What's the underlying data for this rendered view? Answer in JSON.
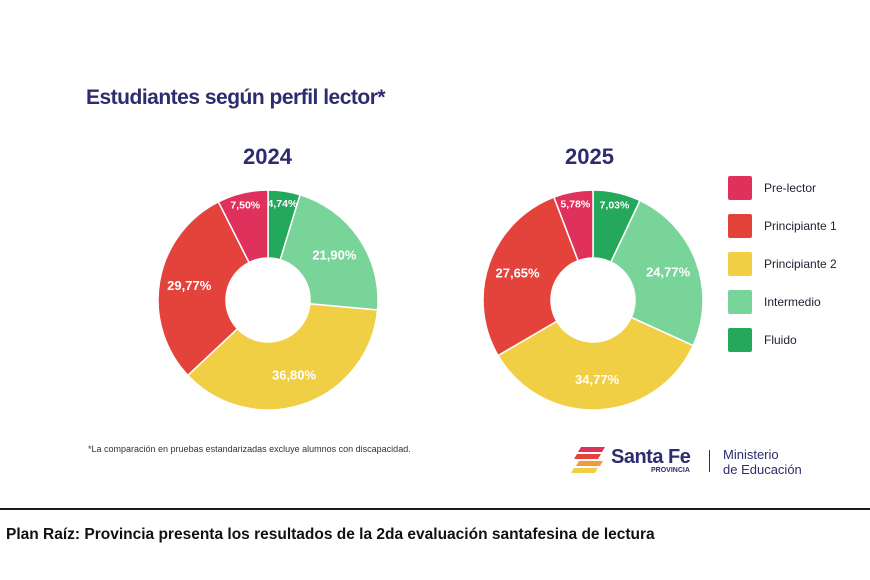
{
  "title": "Estudiantes según perfil lector*",
  "footnote": "*La comparación en pruebas estandarizadas excluye alumnos con discapacidad.",
  "logo": {
    "name": "Santa Fe",
    "sub": "PROVINCIA",
    "ministry_line1": "Ministerio",
    "ministry_line2": "de Educación"
  },
  "caption": "Plan Raíz: Provincia presenta los resultados de la 2da evaluación santafesina de lectura",
  "colors": {
    "title": "#2d2c6e",
    "pre_lector": "#e0305c",
    "principiante_1": "#e4433c",
    "principiante_2": "#f0cf45",
    "intermedio": "#79d49a",
    "fluido": "#24a85c"
  },
  "legend": [
    {
      "label": "Pre-lector",
      "color": "#e0305c"
    },
    {
      "label": "Principiante 1",
      "color": "#e4433c"
    },
    {
      "label": "Principiante 2",
      "color": "#f0cf45"
    },
    {
      "label": "Intermedio",
      "color": "#79d49a"
    },
    {
      "label": "Fluido",
      "color": "#24a85c"
    }
  ],
  "chart_data": [
    {
      "type": "pie",
      "variant": "donut",
      "title": "2024",
      "categories": [
        "Fluido",
        "Intermedio",
        "Principiante 2",
        "Principiante 1",
        "Pre-lector"
      ],
      "values": [
        4.74,
        21.9,
        36.8,
        29.77,
        7.5
      ],
      "labels": [
        "4,74%",
        "21,90%",
        "36,80%",
        "29,77%",
        "7,50%"
      ],
      "colors": [
        "#24a85c",
        "#79d49a",
        "#f0cf45",
        "#e4433c",
        "#e0305c"
      ],
      "legend": "right"
    },
    {
      "type": "pie",
      "variant": "donut",
      "title": "2025",
      "categories": [
        "Fluido",
        "Intermedio",
        "Principiante 2",
        "Principiante 1",
        "Pre-lector"
      ],
      "values": [
        7.03,
        24.77,
        34.77,
        27.65,
        5.78
      ],
      "labels": [
        "7,03%",
        "24,77%",
        "34,77%",
        "27,65%",
        "5,78%"
      ],
      "colors": [
        "#24a85c",
        "#79d49a",
        "#f0cf45",
        "#e4433c",
        "#e0305c"
      ],
      "legend": "right"
    }
  ]
}
